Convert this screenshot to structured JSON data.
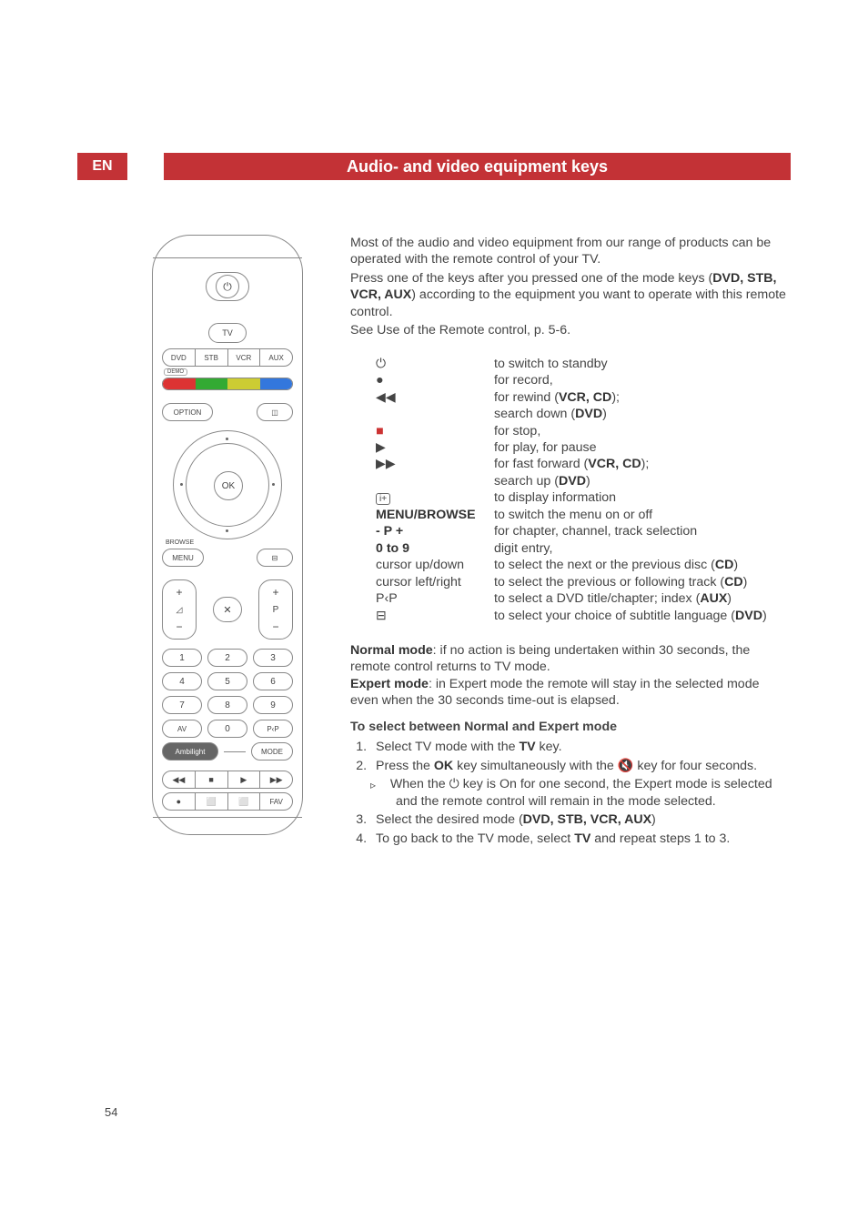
{
  "header": {
    "lang_badge": "EN",
    "title": "Audio- and video equipment keys"
  },
  "intro": {
    "line1": "Most of the audio and video equipment from our range of products can be operated with the remote control of your TV.",
    "line2_a": "Press one of the keys after you pressed one of the mode keys (",
    "line2_modes": "DVD, STB, VCR, AUX",
    "line2_b": ") according to the equipment you want to operate with this remote control.",
    "line3": "See Use of the Remote control, p. 5-6."
  },
  "keys": [
    {
      "icon": "power",
      "label": "",
      "desc_plain": "to switch to standby"
    },
    {
      "icon": "record",
      "label": "",
      "desc_plain": "for record,"
    },
    {
      "icon": "rewind",
      "label": "",
      "desc_pre": "for rewind (",
      "desc_bold": "VCR, CD",
      "desc_post": ");"
    },
    {
      "icon": "",
      "label": "",
      "desc_pre": "search down (",
      "desc_bold": "DVD",
      "desc_post": ")"
    },
    {
      "icon": "stop",
      "label": "",
      "desc_plain": "for stop,"
    },
    {
      "icon": "play",
      "label": "",
      "desc_plain": "for play, for pause"
    },
    {
      "icon": "ff",
      "label": "",
      "desc_pre": "for fast forward (",
      "desc_bold": "VCR, CD",
      "desc_post": ");"
    },
    {
      "icon": "",
      "label": "",
      "desc_pre": "search up (",
      "desc_bold": "DVD",
      "desc_post": ")"
    },
    {
      "icon": "info",
      "label": "",
      "desc_plain": "to display information"
    },
    {
      "icon": "",
      "label": "MENU/BROWSE",
      "bold_label": true,
      "desc_plain": "to switch the menu on or off"
    },
    {
      "icon": "",
      "label": "- P +",
      "bold_label": true,
      "desc_plain": "for chapter, channel, track selection"
    },
    {
      "icon": "",
      "label": "0 to 9",
      "bold_label": true,
      "desc_plain": "digit entry,"
    },
    {
      "icon": "",
      "label": "cursor up/down",
      "desc_pre": "to select the next or the previous disc (",
      "desc_bold": "CD",
      "desc_post": ")"
    },
    {
      "icon": "",
      "label": "cursor left/right",
      "desc_pre": "to select the previous or following track (",
      "desc_bold": "CD",
      "desc_post": ")"
    },
    {
      "icon": "",
      "label": "P‹P",
      "desc_pre": "to select a DVD title/chapter; index (",
      "desc_bold": "AUX",
      "desc_post": ")"
    },
    {
      "icon": "subtitle",
      "label": "",
      "desc_pre": "to select your choice of subtitle language (",
      "desc_bold": "DVD",
      "desc_post": ")"
    }
  ],
  "normal_mode": {
    "label": "Normal mode",
    "text": ": if no action is being undertaken within 30 seconds, the remote control returns to TV mode."
  },
  "expert_mode": {
    "label": "Expert mode",
    "text": ": in Expert mode the remote will stay in the selected mode even when the 30 seconds time-out is elapsed."
  },
  "select_heading": "To select between Normal and Expert mode",
  "steps": {
    "s1_a": "Select TV mode with the ",
    "s1_b": "TV",
    "s1_c": " key.",
    "s2_a": "Press the ",
    "s2_b": "OK",
    "s2_c": " key simultaneously with the ",
    "s2_d": " key for four seconds.",
    "s2_sub_a": "When the ",
    "s2_sub_b": " key is On for one second, the Expert mode is selected and the remote control will remain in the mode selected.",
    "s3_a": "Select the desired mode (",
    "s3_b": "DVD, STB, VCR, AUX",
    "s3_c": ")",
    "s4_a": "To go back to the TV mode, select ",
    "s4_b": "TV",
    "s4_c": " and repeat steps 1 to 3."
  },
  "page_number": "54",
  "remote": {
    "tv": "TV",
    "modes": [
      "DVD",
      "STB",
      "VCR",
      "AUX"
    ],
    "demo": "DEMO",
    "option": "OPTION",
    "ok": "OK",
    "browse": "BROWSE",
    "menu": "MENU",
    "p": "P",
    "numbers": [
      "1",
      "2",
      "3",
      "4",
      "5",
      "6",
      "7",
      "8",
      "9",
      "AV",
      "0",
      "P‹P"
    ],
    "ambilight": "Ambilight",
    "mode": "MODE",
    "trans1": [
      "◀◀",
      "■",
      "▶",
      "▶▶"
    ],
    "trans2": [
      "●",
      "⬜",
      "⬜",
      "FAV"
    ],
    "colors": [
      "#d33",
      "#3a3",
      "#cc3",
      "#37d"
    ]
  }
}
